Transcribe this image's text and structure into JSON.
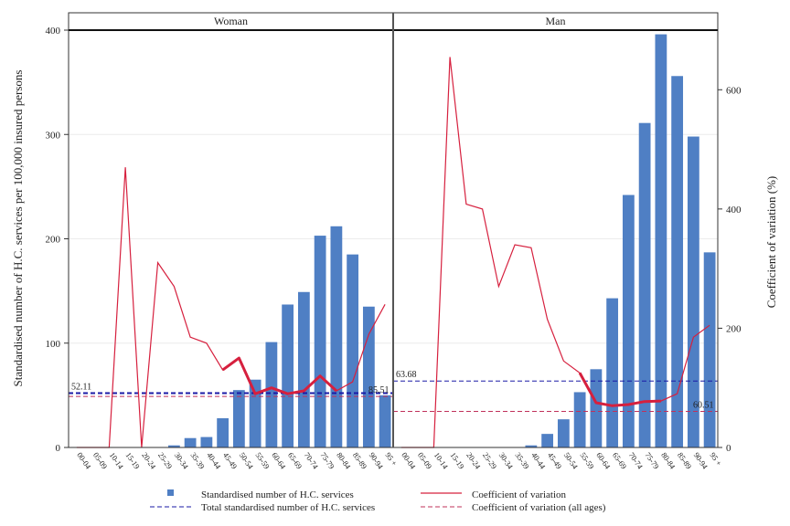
{
  "chart_data": {
    "type": "bar",
    "panels": [
      "Woman",
      "Man"
    ],
    "categories": [
      "00-04",
      "05-09",
      "10-14",
      "15-19",
      "20-24",
      "25-29",
      "30-34",
      "35-39",
      "40-44",
      "45-49",
      "50-54",
      "55-59",
      "60-64",
      "65-69",
      "70-74",
      "75-79",
      "80-84",
      "85-89",
      "90-94",
      "95 +"
    ],
    "ylabel_left": "Standardised number of H.C. services per 100,000 insured persons",
    "ylabel_right": "Coefficient of variation (%)",
    "ylim_left": [
      0,
      400
    ],
    "ylim_right": [
      0,
      700
    ],
    "yticks_left": [
      0,
      100,
      200,
      300,
      400
    ],
    "yticks_right": [
      0,
      200,
      400,
      600
    ],
    "series": [
      {
        "panel": "Woman",
        "name": "Standardised number of H.C. services",
        "values": [
          0,
          0,
          0,
          0,
          0,
          0,
          2,
          9,
          10,
          28,
          55,
          65,
          101,
          137,
          149,
          203,
          212,
          185,
          135,
          50
        ]
      },
      {
        "panel": "Woman",
        "name": "Coefficient of variation",
        "values": [
          0,
          0,
          0,
          470,
          0,
          310,
          270,
          185,
          175,
          130,
          150,
          90,
          100,
          90,
          95,
          120,
          95,
          110,
          190,
          240
        ]
      },
      {
        "panel": "Man",
        "name": "Standardised number of H.C. services",
        "values": [
          0,
          0,
          0,
          0,
          0,
          0,
          0,
          0,
          2,
          13,
          27,
          53,
          75,
          143,
          242,
          311,
          396,
          356,
          298,
          187
        ]
      },
      {
        "panel": "Man",
        "name": "Coefficient of variation",
        "values": [
          0,
          0,
          0,
          655,
          408,
          400,
          270,
          340,
          335,
          215,
          145,
          125,
          75,
          70,
          72,
          77,
          78,
          90,
          185,
          205
        ]
      }
    ],
    "reference_lines": [
      {
        "panel": "Woman",
        "name": "Total standardised number of H.C. services",
        "value": 52.11,
        "label": "52.11"
      },
      {
        "panel": "Woman",
        "name": "Coefficient of variation (all ages)",
        "value": 85.51,
        "label": "85.51"
      },
      {
        "panel": "Man",
        "name": "Total standardised number of H.C. services",
        "value": 63.68,
        "label": "63.68"
      },
      {
        "panel": "Man",
        "name": "Coefficient of variation (all ages)",
        "value": 60.51,
        "label": "60.51"
      }
    ],
    "legend": [
      "Standardised number of H.C. services",
      "Coefficient of variation",
      "Total standardised number of H.C. services",
      "Coefficient of variation (all ages)"
    ],
    "legend_position": "bottom",
    "colors": {
      "bar": "#4f7fc4",
      "cv": "#d6203e",
      "total": "#1a1aa6",
      "cv_all": "#c0305a"
    },
    "grid": true
  }
}
